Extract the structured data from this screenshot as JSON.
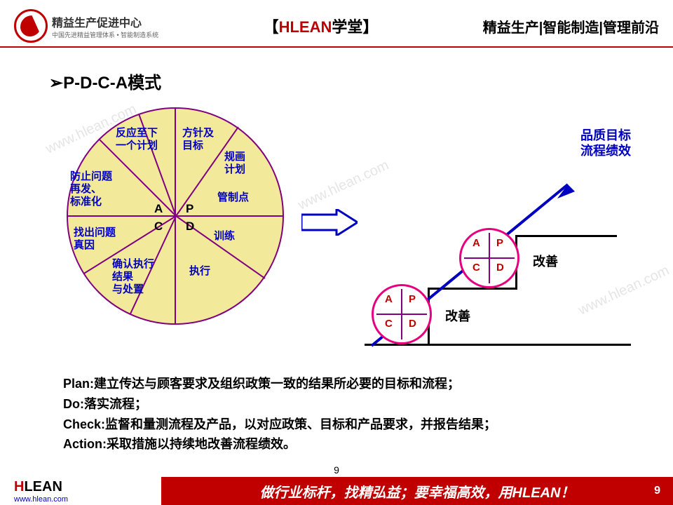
{
  "header": {
    "logo_title": "精益生产促进中心",
    "logo_subtitle": "中国先进精益管理体系 • 智能制造系统",
    "center_bracket_l": "【",
    "center_red": "HLEAN",
    "center_black": "学堂",
    "center_bracket_r": "】",
    "right": "精益生产|智能制造|管理前沿"
  },
  "section_title": "➢P-D-C-A模式",
  "pdca_circle": {
    "fill": "#f3e99a",
    "stroke": "#800080",
    "quadrants": {
      "A": "A",
      "P": "P",
      "C": "C",
      "D": "D"
    },
    "labels": {
      "fanying": "反应至下\n一个计划",
      "fangzhen": "方针及\n目标",
      "guihua": "规画\n计划",
      "guanzhi": "管制点",
      "fangzhi": "防止问题\n再发、\n标准化",
      "zhaochu": "找出问题\n真因",
      "queren": "确认执行\n结果\n与处置",
      "zhixing": "执行",
      "xunlian": "训练"
    }
  },
  "arrow_color": "#0000c0",
  "right_diagram": {
    "minicircle_stroke": "#e6007e",
    "q": {
      "A": "A",
      "P": "P",
      "C": "C",
      "D": "D"
    },
    "kaizen": "改善",
    "goal": "品质目标\n流程绩效"
  },
  "definitions": {
    "plan": "Plan:建立传达与顾客要求及组织政策一致的结果所必要的目标和流程；",
    "do": "Do:落实流程；",
    "check": "Check:监督和量测流程及产品，以对应政策、目标和产品要求，并报告结果；",
    "action": "Action:采取措施以持续地改善流程绩效。"
  },
  "footer": {
    "brand_h": "H",
    "brand_rest": "LEAN",
    "url": "www.hlean.com",
    "slogan": "做行业标杆，找精弘益；要幸福高效，用HLEAN！",
    "page": "9"
  },
  "watermark": "www.hlean.com"
}
